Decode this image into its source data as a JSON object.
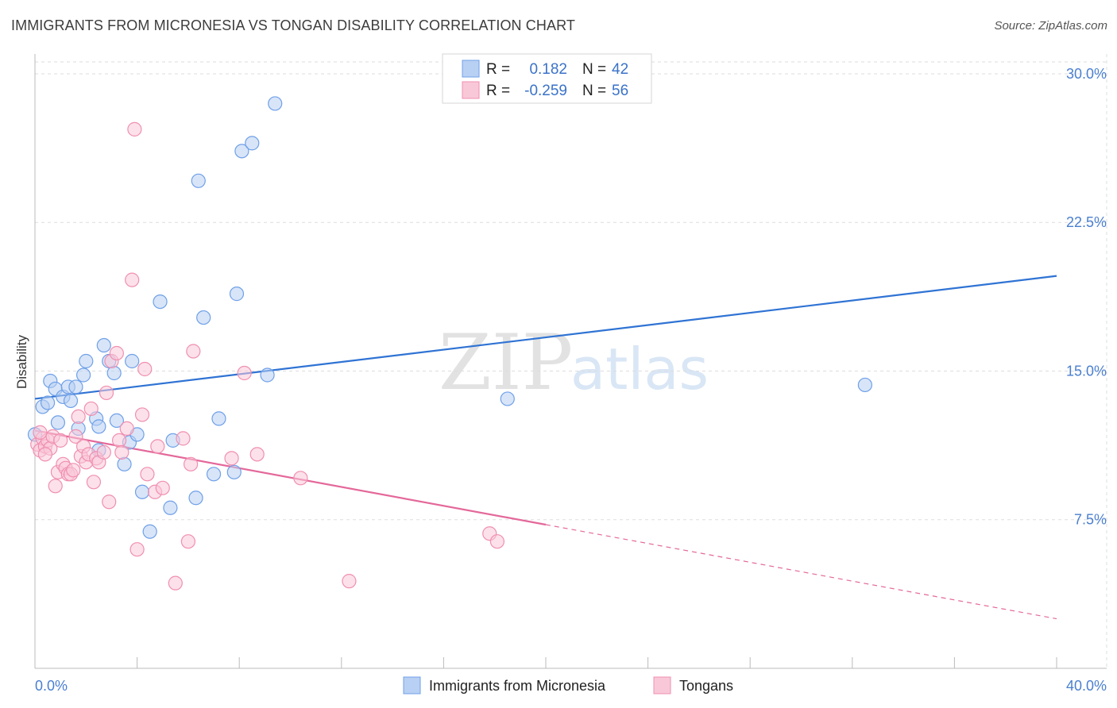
{
  "header": {
    "title": "IMMIGRANTS FROM MICRONESIA VS TONGAN DISABILITY CORRELATION CHART",
    "source": "Source: ZipAtlas.com"
  },
  "watermark": {
    "zip": "ZIP",
    "atlas": "atlas"
  },
  "colors": {
    "blue": "#6fa0e8",
    "blue_fill": "#b8d0f3",
    "blue_line": "#2f73d4",
    "pink": "#f08fb0",
    "pink_fill": "#f9c8d8",
    "pink_line": "#e4689a",
    "grid": "#dddddd",
    "tick_text": "#4a7fd0"
  },
  "legend": {
    "rows": [
      {
        "r_label": "R =",
        "r_value": "0.182",
        "n_label": "N =",
        "n_value": "42",
        "series": "blue"
      },
      {
        "r_label": "R =",
        "r_value": "-0.259",
        "n_label": "N =",
        "n_value": "56",
        "series": "pink"
      }
    ]
  },
  "bottom_legend": [
    {
      "label": "Immigrants from Micronesia",
      "series": "blue"
    },
    {
      "label": "Tongans",
      "series": "pink"
    }
  ],
  "chart_data": {
    "type": "scatter",
    "title": "IMMIGRANTS FROM MICRONESIA VS TONGAN DISABILITY CORRELATION CHART",
    "xlabel": "",
    "ylabel": "Disability",
    "xlim": [
      0,
      40
    ],
    "ylim": [
      0,
      31
    ],
    "x_tick_labels": [
      "0.0%",
      "40.0%"
    ],
    "y_ticks": [
      7.5,
      15.0,
      22.5,
      30.0
    ],
    "y_tick_labels": [
      "7.5%",
      "15.0%",
      "22.5%",
      "30.0%"
    ],
    "series": [
      {
        "name": "Immigrants from Micronesia",
        "color": "blue",
        "r": 0.182,
        "n": 42,
        "trend": {
          "x": [
            0,
            40
          ],
          "y": [
            13.6,
            19.8
          ],
          "dashed_from": null
        },
        "points": [
          [
            0.0,
            11.8
          ],
          [
            0.3,
            13.2
          ],
          [
            0.5,
            13.4
          ],
          [
            0.6,
            14.5
          ],
          [
            0.8,
            14.1
          ],
          [
            0.9,
            12.4
          ],
          [
            1.1,
            13.7
          ],
          [
            1.3,
            14.2
          ],
          [
            1.4,
            13.5
          ],
          [
            1.6,
            14.2
          ],
          [
            1.7,
            12.1
          ],
          [
            1.9,
            14.8
          ],
          [
            2.0,
            15.5
          ],
          [
            2.4,
            12.6
          ],
          [
            2.5,
            12.2
          ],
          [
            2.5,
            11.0
          ],
          [
            2.7,
            16.3
          ],
          [
            2.9,
            15.5
          ],
          [
            3.1,
            14.9
          ],
          [
            3.2,
            12.5
          ],
          [
            3.5,
            10.3
          ],
          [
            3.7,
            11.4
          ],
          [
            3.8,
            15.5
          ],
          [
            4.0,
            11.8
          ],
          [
            4.2,
            8.9
          ],
          [
            4.5,
            6.9
          ],
          [
            4.9,
            18.5
          ],
          [
            5.3,
            8.1
          ],
          [
            5.4,
            11.5
          ],
          [
            6.3,
            8.6
          ],
          [
            6.4,
            24.6
          ],
          [
            6.6,
            17.7
          ],
          [
            7.0,
            9.8
          ],
          [
            7.2,
            12.6
          ],
          [
            7.8,
            9.9
          ],
          [
            7.9,
            18.9
          ],
          [
            8.1,
            26.1
          ],
          [
            8.5,
            26.5
          ],
          [
            9.1,
            14.8
          ],
          [
            9.4,
            28.5
          ],
          [
            18.5,
            13.6
          ],
          [
            32.5,
            14.3
          ]
        ]
      },
      {
        "name": "Tongans",
        "color": "pink",
        "r": -0.259,
        "n": 56,
        "trend": {
          "x": [
            0,
            40
          ],
          "y": [
            12.0,
            2.5
          ],
          "dashed_from": 20.0
        },
        "points": [
          [
            0.1,
            11.3
          ],
          [
            0.2,
            11.0
          ],
          [
            0.3,
            11.6
          ],
          [
            0.4,
            11.2
          ],
          [
            0.5,
            11.5
          ],
          [
            0.6,
            11.1
          ],
          [
            0.7,
            11.7
          ],
          [
            0.8,
            9.2
          ],
          [
            0.9,
            9.9
          ],
          [
            1.0,
            11.5
          ],
          [
            1.1,
            10.3
          ],
          [
            1.2,
            10.1
          ],
          [
            1.3,
            9.8
          ],
          [
            1.4,
            9.8
          ],
          [
            1.5,
            10.0
          ],
          [
            1.6,
            11.7
          ],
          [
            1.7,
            12.7
          ],
          [
            1.8,
            10.7
          ],
          [
            1.9,
            11.2
          ],
          [
            2.0,
            10.4
          ],
          [
            2.1,
            10.8
          ],
          [
            2.2,
            13.1
          ],
          [
            2.3,
            9.4
          ],
          [
            2.4,
            10.6
          ],
          [
            2.5,
            10.4
          ],
          [
            2.7,
            10.9
          ],
          [
            2.8,
            13.9
          ],
          [
            2.9,
            8.4
          ],
          [
            3.0,
            15.5
          ],
          [
            3.2,
            15.9
          ],
          [
            3.3,
            11.5
          ],
          [
            3.4,
            10.9
          ],
          [
            3.6,
            12.1
          ],
          [
            3.8,
            19.6
          ],
          [
            3.9,
            27.2
          ],
          [
            4.0,
            6.0
          ],
          [
            4.2,
            12.8
          ],
          [
            4.3,
            15.1
          ],
          [
            4.4,
            9.8
          ],
          [
            4.7,
            8.9
          ],
          [
            4.8,
            11.2
          ],
          [
            5.0,
            9.1
          ],
          [
            5.5,
            4.3
          ],
          [
            5.8,
            11.6
          ],
          [
            6.0,
            6.4
          ],
          [
            6.1,
            10.3
          ],
          [
            6.2,
            16.0
          ],
          [
            7.7,
            10.6
          ],
          [
            8.2,
            14.9
          ],
          [
            8.7,
            10.8
          ],
          [
            10.4,
            9.6
          ],
          [
            12.3,
            4.4
          ],
          [
            17.8,
            6.8
          ],
          [
            18.1,
            6.4
          ],
          [
            0.4,
            10.8
          ],
          [
            0.2,
            11.9
          ]
        ]
      }
    ]
  }
}
